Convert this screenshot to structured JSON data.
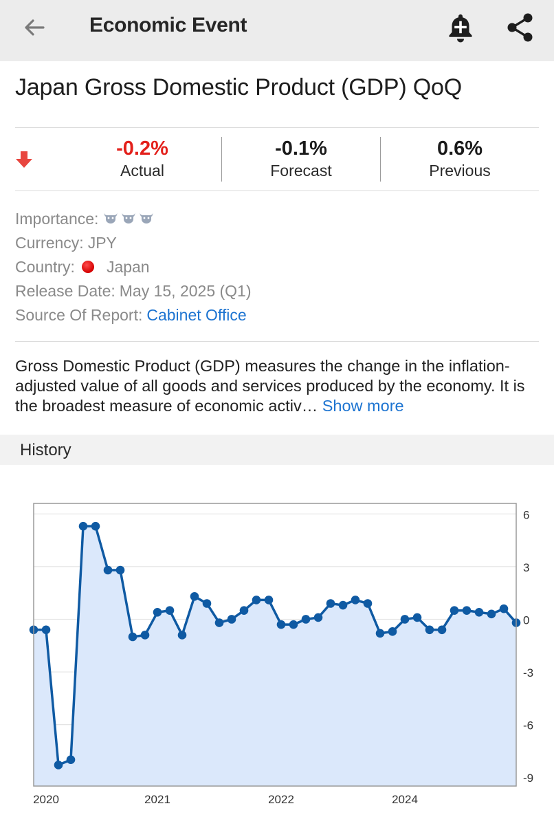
{
  "appbar": {
    "title": "Economic Event",
    "icons": [
      "back-arrow-icon",
      "bell-plus-icon",
      "share-icon"
    ]
  },
  "event": {
    "title": "Japan Gross Domestic Product (GDP) QoQ"
  },
  "stats": {
    "actual": {
      "value": "-0.2%",
      "label": "Actual",
      "color": "#e3201b"
    },
    "forecast": {
      "value": "-0.1%",
      "label": "Forecast"
    },
    "previous": {
      "value": "0.6%",
      "label": "Previous"
    },
    "trend_icon": "down-arrow-icon"
  },
  "details": {
    "importance_label": "Importance:",
    "importance_level": 3,
    "currency_label": "Currency:",
    "currency_value": "JPY",
    "country_label": "Country:",
    "country_value": "Japan",
    "release_label": "Release Date:",
    "release_value": "May 15, 2025 (Q1)",
    "source_label": "Source Of Report:",
    "source_value": "Cabinet Office"
  },
  "description": {
    "text": "Gross Domestic Product (GDP) measures the change in the inflation-adjusted value of all goods and services produced by the economy. It is the broadest measure of economic activ…",
    "show_more": "Show more"
  },
  "history": {
    "label": "History"
  },
  "chart_data": {
    "type": "area",
    "x_tick_labels": [
      "2020",
      "2021",
      "2022",
      "2024"
    ],
    "y_tick_labels": [
      "6",
      "3",
      "0",
      "-3",
      "-6",
      "-9"
    ],
    "y_ticks": [
      6,
      3,
      0,
      -3,
      -6,
      -9
    ],
    "ylim": [
      -9.5,
      6.6
    ],
    "y_axis_side": "right",
    "grid": true,
    "line_color": "#0f5aa3",
    "fill_color": "#dbe8fb",
    "values": [
      -0.6,
      -0.6,
      -8.3,
      -8.0,
      5.3,
      5.3,
      2.8,
      2.8,
      -1.0,
      -0.9,
      0.4,
      0.5,
      -0.9,
      1.3,
      0.9,
      -0.2,
      0.0,
      0.5,
      1.1,
      1.1,
      -0.3,
      -0.3,
      0.0,
      0.1,
      0.9,
      0.8,
      1.1,
      0.9,
      -0.8,
      -0.7,
      0.0,
      0.1,
      -0.6,
      -0.6,
      0.5,
      0.5,
      0.4,
      0.3,
      0.6,
      -0.2
    ]
  }
}
